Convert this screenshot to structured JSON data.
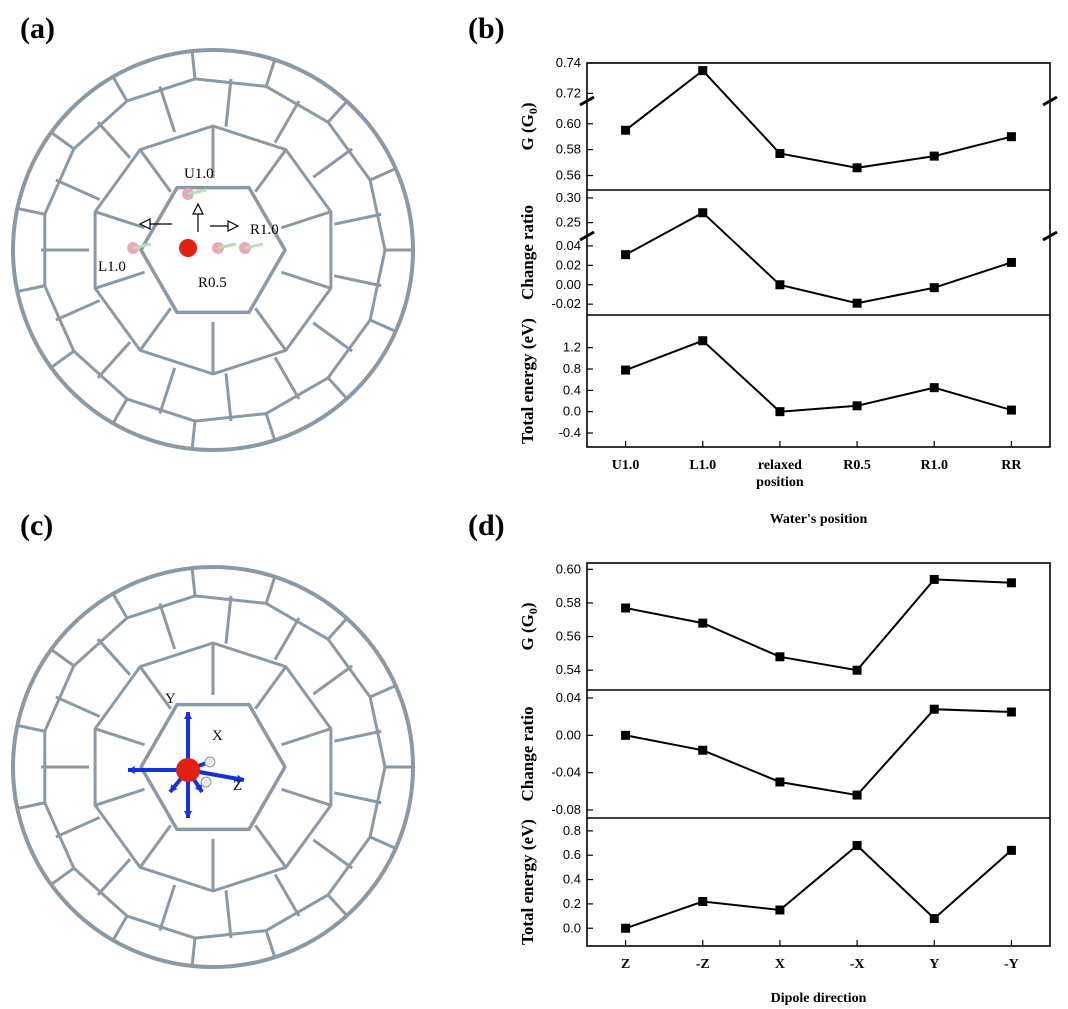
{
  "panel_labels": {
    "a": "(a)",
    "b": "(b)",
    "c": "(c)",
    "d": "(d)"
  },
  "molecule_labels_a": [
    "U1.0",
    "R1.0",
    "L1.0",
    "R0.5"
  ],
  "axis_labels_c": [
    "Y",
    "X",
    "Z"
  ],
  "colors": {
    "cage": "#8a99a6",
    "oxygen": "#e02010",
    "hydrogen": "#e8e8e8",
    "arrow": "#1530e0",
    "ghost": "#e8a0b0"
  },
  "chart_data": [
    {
      "type": "line",
      "panel": "(b)",
      "categories": [
        "U1.0",
        "L1.0",
        "relaxed\nposition",
        "R0.5",
        "R1.0",
        "RR"
      ],
      "xlabel": "Water's position",
      "subplots": [
        {
          "ylabel": "G (G0)",
          "ylabel_main": "G (G",
          "ylabel_sub": "0",
          "ylabel_end": ")",
          "values": [
            0.595,
            0.735,
            0.577,
            0.566,
            0.575,
            0.59
          ],
          "axis_break": true,
          "upper_ticks": [
            "0.74",
            "0.72"
          ],
          "upper_range": [
            0.715,
            0.74
          ],
          "lower_ticks": [
            "0.60",
            "0.58",
            "0.56"
          ],
          "lower_range": [
            0.555,
            0.606
          ]
        },
        {
          "ylabel": "Change ratio",
          "values": [
            0.031,
            0.27,
            0.0,
            -0.019,
            -0.003,
            0.023
          ],
          "axis_break": true,
          "upper_ticks": [
            "0.30",
            "0.25"
          ],
          "upper_range": [
            0.235,
            0.31
          ],
          "lower_ticks": [
            "0.04",
            "0.02",
            "0.00",
            "-0.02"
          ],
          "lower_range": [
            -0.026,
            0.043
          ]
        },
        {
          "ylabel": "Total energy (eV)",
          "values": [
            0.78,
            1.33,
            0.0,
            0.11,
            0.45,
            0.03
          ],
          "axis_break": false,
          "ticks": [
            "1.2",
            "0.8",
            "0.4",
            "0.0",
            "-0.4"
          ],
          "ylim": [
            -0.4,
            1.55
          ]
        }
      ]
    },
    {
      "type": "line",
      "panel": "(d)",
      "categories": [
        "Z",
        "-Z",
        "X",
        "-X",
        "Y",
        "-Y"
      ],
      "xlabel": "Dipole direction",
      "subplots": [
        {
          "ylabel": "G (G0)",
          "ylabel_main": "G (G",
          "ylabel_sub": "0",
          "ylabel_end": ")",
          "values": [
            0.577,
            0.568,
            0.548,
            0.54,
            0.594,
            0.592
          ],
          "ticks": [
            "0.60",
            "0.58",
            "0.56",
            "0.54"
          ],
          "ylim": [
            0.533,
            0.599
          ]
        },
        {
          "ylabel": "Change ratio",
          "values": [
            0.0,
            -0.016,
            -0.05,
            -0.064,
            0.028,
            0.025
          ],
          "ticks": [
            "0.04",
            "0.00",
            "-0.04",
            "-0.08"
          ],
          "ylim": [
            -0.08,
            0.04
          ]
        },
        {
          "ylabel": "Total energy (eV)",
          "values": [
            0.0,
            0.22,
            0.15,
            0.68,
            0.08,
            0.64
          ],
          "ticks": [
            "0.8",
            "0.6",
            "0.4",
            "0.2",
            "0.0"
          ],
          "ylim": [
            -0.08,
            0.84
          ]
        }
      ]
    }
  ]
}
